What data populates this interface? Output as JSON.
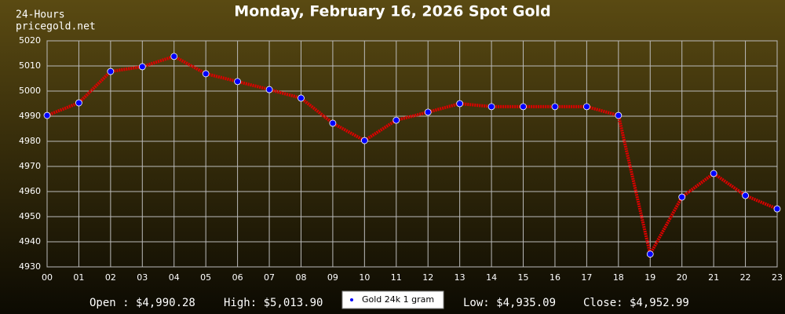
{
  "chart_data": {
    "type": "line",
    "title": "Monday, February 16, 2026 Spot Gold",
    "subtitle": [
      "24-Hours",
      "pricegold.net"
    ],
    "categories": [
      "00",
      "01",
      "02",
      "03",
      "04",
      "05",
      "06",
      "07",
      "08",
      "09",
      "10",
      "11",
      "12",
      "13",
      "14",
      "15",
      "16",
      "17",
      "18",
      "19",
      "20",
      "21",
      "22",
      "23"
    ],
    "series": [
      {
        "name": "Gold 24k 1 gram",
        "color": "#dd0000",
        "marker_color": "#0000ff",
        "values": [
          4990.3,
          4995.3,
          5007.8,
          5009.7,
          5013.8,
          5006.9,
          5003.8,
          5000.6,
          4997.2,
          4987.2,
          4980.3,
          4988.4,
          4991.6,
          4995.0,
          4993.8,
          4993.8,
          4993.8,
          4993.8,
          4990.3,
          4935.1,
          4957.8,
          4967.2,
          4958.4,
          4953.1
        ]
      }
    ],
    "ylim": [
      4930,
      5020
    ],
    "yticks": [
      4930,
      4940,
      4950,
      4960,
      4970,
      4980,
      4990,
      5000,
      5010,
      5020
    ],
    "grid": true,
    "stats": [
      "Open : $4,990.28",
      "High: $5,013.90",
      "Low: $4,935.09",
      "Close: $4,952.99"
    ]
  }
}
